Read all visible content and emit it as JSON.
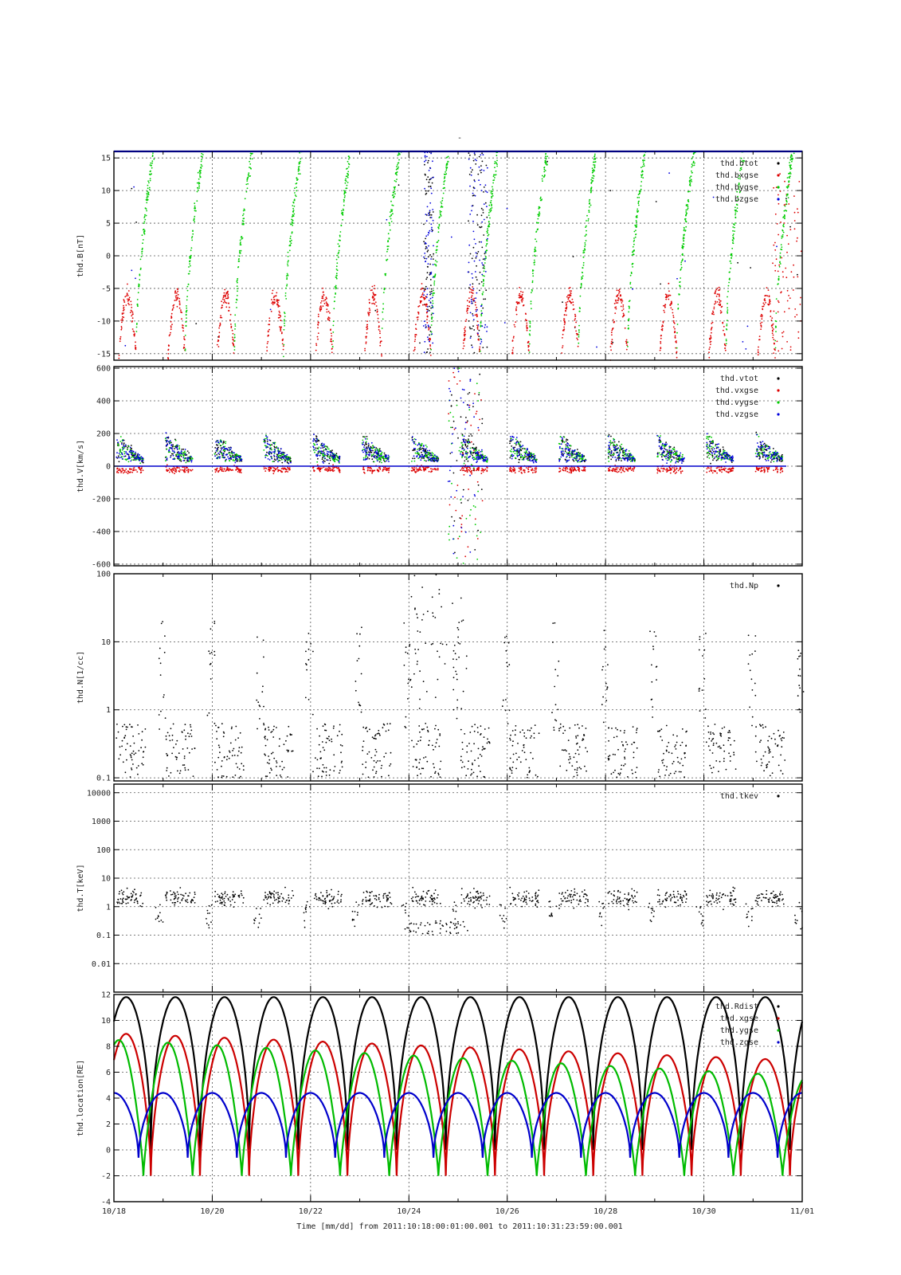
{
  "figure": {
    "top_mark": "-",
    "x_axis_label": "Time [mm/dd]  from 2011:10:18:00:01:00.001  to  2011:10:31:23:59:00.001",
    "x_ticks": [
      "10/18",
      "10/20",
      "10/22",
      "10/24",
      "10/26",
      "10/28",
      "10/30",
      "11/01"
    ]
  },
  "chart_data": [
    {
      "type": "scatter",
      "ylabel": "thd.B[nT]",
      "ylim": [
        -16,
        16
      ],
      "yticks": [
        -15,
        -10,
        -5,
        0,
        5,
        10,
        15
      ],
      "y_tick_labels": [
        "-15",
        "-10",
        "-5",
        "0",
        "5",
        "10",
        "15"
      ],
      "log": false,
      "grid": true,
      "legend_placement": "top-right",
      "series": [
        {
          "name": "thd.btot",
          "color": "#000000",
          "pattern": "bursts"
        },
        {
          "name": "thd.bxgse",
          "color": "#dd0000",
          "pattern": "bx"
        },
        {
          "name": "thd.bygse",
          "color": "#00cc00",
          "pattern": "by"
        },
        {
          "name": "thd.bzgse",
          "color": "#0000dd",
          "pattern": "bursts"
        }
      ]
    },
    {
      "type": "scatter",
      "ylabel": "thd.V[km/s]",
      "ylim": [
        -610,
        610
      ],
      "yticks": [
        -600,
        -400,
        -200,
        0,
        200,
        400,
        600
      ],
      "y_tick_labels": [
        "-600",
        "-400",
        "-200",
        "0",
        "200",
        "400",
        "600"
      ],
      "log": false,
      "grid": true,
      "legend_placement": "top-right",
      "series": [
        {
          "name": "thd.vtot",
          "color": "#000000",
          "pattern": "vmain"
        },
        {
          "name": "thd.vxgse",
          "color": "#dd0000",
          "pattern": "vx"
        },
        {
          "name": "thd.vygse",
          "color": "#00cc00",
          "pattern": "vmain"
        },
        {
          "name": "thd.vzgse",
          "color": "#0000dd",
          "pattern": "vmain"
        }
      ]
    },
    {
      "type": "scatter",
      "ylabel": "thd.N[1/cc]",
      "ylim": [
        0.09,
        100
      ],
      "yticks": [
        0.1,
        1,
        10,
        100
      ],
      "y_tick_labels": [
        "0.1",
        "1",
        "10",
        "100"
      ],
      "log": true,
      "grid": true,
      "legend_placement": "top-right",
      "series": [
        {
          "name": "thd.Np",
          "color": "#000000",
          "pattern": "density"
        }
      ]
    },
    {
      "type": "scatter",
      "ylabel": "thd.T[keV]",
      "ylim": [
        0.001,
        20000
      ],
      "yticks": [
        0.01,
        0.1,
        1,
        10,
        100,
        1000,
        10000
      ],
      "y_tick_labels": [
        "0.01",
        "0.1",
        "1",
        "10",
        "100",
        "1000",
        "10000"
      ],
      "log": true,
      "grid": true,
      "legend_placement": "top-right",
      "series": [
        {
          "name": "thd.tkev",
          "color": "#000000",
          "pattern": "temp"
        }
      ]
    },
    {
      "type": "line",
      "ylabel": "thd.location[RE]",
      "ylim": [
        -4,
        12
      ],
      "yticks": [
        -4,
        -2,
        0,
        2,
        4,
        6,
        8,
        10,
        12
      ],
      "y_tick_labels": [
        "-4",
        "-2",
        "0",
        "2",
        "4",
        "6",
        "8",
        "10",
        "12"
      ],
      "log": false,
      "grid": true,
      "legend_placement": "top-right",
      "series": [
        {
          "name": "thd.Rdist",
          "color": "#000000",
          "shape": "rdist"
        },
        {
          "name": "thd.xgse",
          "color": "#cc0000",
          "shape": "xgse"
        },
        {
          "name": "thd.ygse",
          "color": "#00bb00",
          "shape": "ygse"
        },
        {
          "name": "thd.zgse",
          "color": "#0000cc",
          "shape": "zgse"
        }
      ]
    }
  ]
}
